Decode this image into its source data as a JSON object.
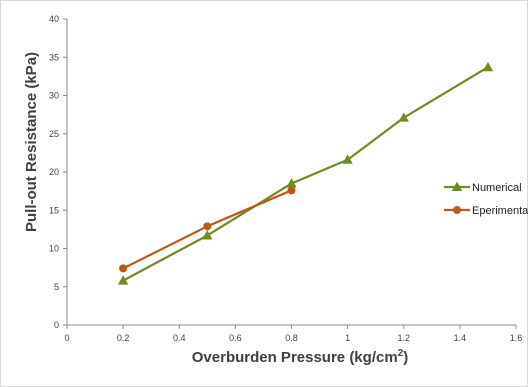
{
  "chart_data": {
    "type": "line",
    "xlabel": "Overburden Pressure (kg/cm",
    "xlabel_superscript": "2",
    "xlabel_suffix": ")",
    "ylabel": "Pull-out Resistance (kPa)",
    "xlim": [
      0,
      1.6
    ],
    "ylim": [
      0,
      40
    ],
    "xticks": [
      "0",
      "0.2",
      "0.4",
      "0.6",
      "0.8",
      "1",
      "1.2",
      "1.4",
      "1.6"
    ],
    "yticks": [
      "0",
      "5",
      "10",
      "15",
      "20",
      "25",
      "30",
      "35",
      "40"
    ],
    "grid": false,
    "legend_position": "right",
    "series": [
      {
        "name": "Numerical",
        "color": "#6b8e23",
        "marker": "triangle",
        "x": [
          0.2,
          0.5,
          0.8,
          1.0,
          1.2,
          1.5
        ],
        "y": [
          5.8,
          11.7,
          18.5,
          21.6,
          27.1,
          33.7
        ]
      },
      {
        "name": "Eperimental",
        "color": "#c0571a",
        "marker": "circle",
        "x": [
          0.2,
          0.5,
          0.8
        ],
        "y": [
          7.4,
          12.9,
          17.6
        ]
      }
    ]
  }
}
